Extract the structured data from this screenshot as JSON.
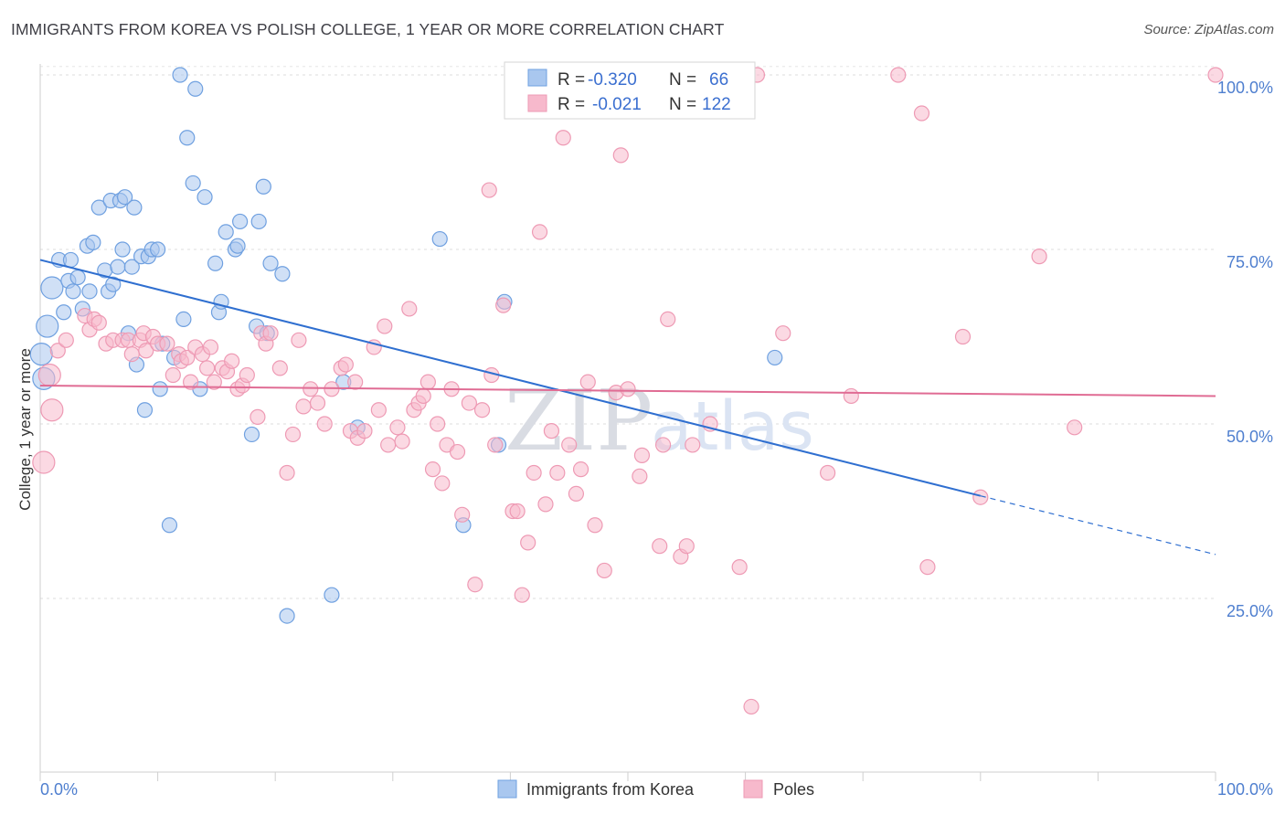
{
  "title": "IMMIGRANTS FROM KOREA VS POLISH COLLEGE, 1 YEAR OR MORE CORRELATION CHART",
  "source": "Source: ZipAtlas.com",
  "watermark": {
    "part1": "ZIP",
    "part2": "atlas"
  },
  "legend": {
    "rows": [
      {
        "r_label": "R =",
        "r_value": "-0.320",
        "n_label": "N =",
        "n_value": "66",
        "color": "#a9c7ef"
      },
      {
        "r_label": "R =",
        "r_value": "-0.021",
        "n_label": "N =",
        "n_value": "122",
        "color": "#f7b9cc"
      }
    ]
  },
  "bottom_legend": [
    {
      "label": "Immigrants from Korea",
      "color": "#a9c7ef"
    },
    {
      "label": "Poles",
      "color": "#f7b9cc"
    }
  ],
  "chart_data": {
    "type": "scatter",
    "title": "IMMIGRANTS FROM KOREA VS POLISH COLLEGE, 1 YEAR OR MORE CORRELATION CHART",
    "xlabel": "",
    "ylabel": "College, 1 year or more",
    "xlim": [
      0,
      100
    ],
    "ylim": [
      0,
      102
    ],
    "x_tick_labels": [
      "0.0%",
      "100.0%"
    ],
    "y_ticks": [
      25,
      50,
      75,
      100
    ],
    "y_tick_labels": [
      "25.0%",
      "50.0%",
      "75.0%",
      "100.0%"
    ],
    "grid": true,
    "series": [
      {
        "name": "Immigrants from Korea",
        "color": "#6fa0e0",
        "fill": "#a9c7ef",
        "trend": {
          "x0": 0,
          "y0": 73.5,
          "x1": 80,
          "y1": 39.7,
          "dash_to_x": 100,
          "dash_to_y": 31.3,
          "color": "#2f6fd0"
        },
        "points": [
          [
            0.3,
            56.5
          ],
          [
            0.6,
            64
          ],
          [
            1,
            69.5
          ],
          [
            1.6,
            73.5
          ],
          [
            2,
            66
          ],
          [
            2.4,
            70.5
          ],
          [
            2.6,
            73.5
          ],
          [
            2.8,
            69
          ],
          [
            3.2,
            71
          ],
          [
            3.6,
            66.5
          ],
          [
            4,
            75.5
          ],
          [
            4.2,
            69
          ],
          [
            4.5,
            76
          ],
          [
            5,
            81
          ],
          [
            5.5,
            72
          ],
          [
            5.8,
            69
          ],
          [
            6,
            82
          ],
          [
            6.2,
            70
          ],
          [
            6.6,
            72.5
          ],
          [
            6.8,
            82
          ],
          [
            7,
            75
          ],
          [
            7.2,
            82.5
          ],
          [
            7.5,
            63
          ],
          [
            7.8,
            72.5
          ],
          [
            8,
            81
          ],
          [
            8.2,
            58.5
          ],
          [
            8.6,
            74
          ],
          [
            8.9,
            52
          ],
          [
            9.2,
            74
          ],
          [
            9.5,
            75
          ],
          [
            10,
            75
          ],
          [
            10.2,
            55
          ],
          [
            10.4,
            61.5
          ],
          [
            11,
            35.5
          ],
          [
            11.4,
            59.5
          ],
          [
            11.9,
            100
          ],
          [
            12.2,
            65
          ],
          [
            12.5,
            91
          ],
          [
            13,
            84.5
          ],
          [
            13.2,
            98
          ],
          [
            13.6,
            55
          ],
          [
            14,
            82.5
          ],
          [
            14.9,
            73
          ],
          [
            15.2,
            66
          ],
          [
            15.4,
            67.5
          ],
          [
            15.8,
            77.5
          ],
          [
            16.6,
            75
          ],
          [
            16.8,
            75.5
          ],
          [
            17,
            79
          ],
          [
            18,
            48.5
          ],
          [
            18.4,
            64
          ],
          [
            18.6,
            79
          ],
          [
            19,
            84
          ],
          [
            19.3,
            63
          ],
          [
            19.6,
            73
          ],
          [
            20.6,
            71.5
          ],
          [
            21,
            22.5
          ],
          [
            24.8,
            25.5
          ],
          [
            25.8,
            56
          ],
          [
            27,
            49.5
          ],
          [
            34,
            76.5
          ],
          [
            36,
            35.5
          ],
          [
            39,
            47
          ],
          [
            39.5,
            67.5
          ],
          [
            62.5,
            59.5
          ],
          [
            0.1,
            60
          ]
        ]
      },
      {
        "name": "Poles",
        "color": "#ee9ab4",
        "fill": "#f7b9cc",
        "trend": {
          "x0": 0,
          "y0": 55.5,
          "x1": 100,
          "y1": 54,
          "color": "#e06c94"
        },
        "points": [
          [
            0.3,
            44.5
          ],
          [
            0.8,
            57
          ],
          [
            1,
            52
          ],
          [
            1.5,
            60.5
          ],
          [
            2.2,
            62
          ],
          [
            3.8,
            65.5
          ],
          [
            4.2,
            63.5
          ],
          [
            4.6,
            65
          ],
          [
            5,
            64.5
          ],
          [
            5.6,
            61.5
          ],
          [
            6.2,
            62
          ],
          [
            7,
            62
          ],
          [
            7.5,
            62
          ],
          [
            7.8,
            60
          ],
          [
            8.5,
            62
          ],
          [
            8.8,
            63
          ],
          [
            9,
            60.5
          ],
          [
            9.6,
            62.5
          ],
          [
            10,
            61.5
          ],
          [
            10.8,
            61.5
          ],
          [
            11.3,
            57
          ],
          [
            11.8,
            60
          ],
          [
            12,
            59
          ],
          [
            12.5,
            59.5
          ],
          [
            12.8,
            56
          ],
          [
            13.2,
            61
          ],
          [
            13.8,
            60
          ],
          [
            14.2,
            58
          ],
          [
            14.5,
            61
          ],
          [
            14.8,
            56
          ],
          [
            15.5,
            58
          ],
          [
            15.9,
            57.5
          ],
          [
            16.3,
            59
          ],
          [
            16.8,
            55
          ],
          [
            17.2,
            55.5
          ],
          [
            17.6,
            57
          ],
          [
            18.5,
            51
          ],
          [
            18.8,
            63
          ],
          [
            19.2,
            61.5
          ],
          [
            19.6,
            63
          ],
          [
            20.4,
            58
          ],
          [
            21,
            43
          ],
          [
            21.5,
            48.5
          ],
          [
            22,
            62
          ],
          [
            22.4,
            52.5
          ],
          [
            23,
            55
          ],
          [
            23.6,
            53
          ],
          [
            24.2,
            50
          ],
          [
            24.8,
            55
          ],
          [
            25.6,
            58
          ],
          [
            26,
            58.5
          ],
          [
            26.4,
            49
          ],
          [
            26.8,
            56
          ],
          [
            27,
            48
          ],
          [
            27.6,
            49
          ],
          [
            28.4,
            61
          ],
          [
            28.8,
            52
          ],
          [
            29.3,
            64
          ],
          [
            29.6,
            47
          ],
          [
            30.4,
            49.5
          ],
          [
            30.8,
            47.5
          ],
          [
            31.4,
            66.5
          ],
          [
            31.8,
            52
          ],
          [
            32.2,
            53
          ],
          [
            32.6,
            54
          ],
          [
            33,
            56
          ],
          [
            33.4,
            43.5
          ],
          [
            33.8,
            50
          ],
          [
            34.2,
            41.5
          ],
          [
            34.6,
            47
          ],
          [
            35,
            55
          ],
          [
            35.5,
            46
          ],
          [
            35.9,
            37
          ],
          [
            36.5,
            53
          ],
          [
            37,
            27
          ],
          [
            37.6,
            52
          ],
          [
            38.2,
            83.5
          ],
          [
            38.4,
            57
          ],
          [
            38.7,
            47
          ],
          [
            39.4,
            67
          ],
          [
            40.2,
            37.5
          ],
          [
            40.6,
            37.5
          ],
          [
            41,
            25.5
          ],
          [
            41.5,
            33
          ],
          [
            42,
            43
          ],
          [
            42.5,
            77.5
          ],
          [
            43,
            38.5
          ],
          [
            43.5,
            49
          ],
          [
            44,
            43
          ],
          [
            44.5,
            91
          ],
          [
            45,
            47
          ],
          [
            45.6,
            40
          ],
          [
            46,
            43.5
          ],
          [
            46.6,
            56
          ],
          [
            47.2,
            35.5
          ],
          [
            48,
            29
          ],
          [
            49,
            54.5
          ],
          [
            49.4,
            88.5
          ],
          [
            50,
            55
          ],
          [
            51,
            42.5
          ],
          [
            51.2,
            45.5
          ],
          [
            52.7,
            32.5
          ],
          [
            53,
            47
          ],
          [
            53.4,
            65
          ],
          [
            54.5,
            31
          ],
          [
            55,
            32.5
          ],
          [
            55.5,
            47
          ],
          [
            57,
            50
          ],
          [
            59.5,
            29.5
          ],
          [
            61,
            100
          ],
          [
            63.2,
            63
          ],
          [
            67,
            43
          ],
          [
            69,
            54
          ],
          [
            73,
            100
          ],
          [
            75,
            94.5
          ],
          [
            75.5,
            29.5
          ],
          [
            78.5,
            62.5
          ],
          [
            80,
            39.5
          ],
          [
            85,
            74
          ],
          [
            88,
            49.5
          ],
          [
            100,
            100
          ],
          [
            60.5,
            9.5
          ]
        ]
      }
    ]
  }
}
